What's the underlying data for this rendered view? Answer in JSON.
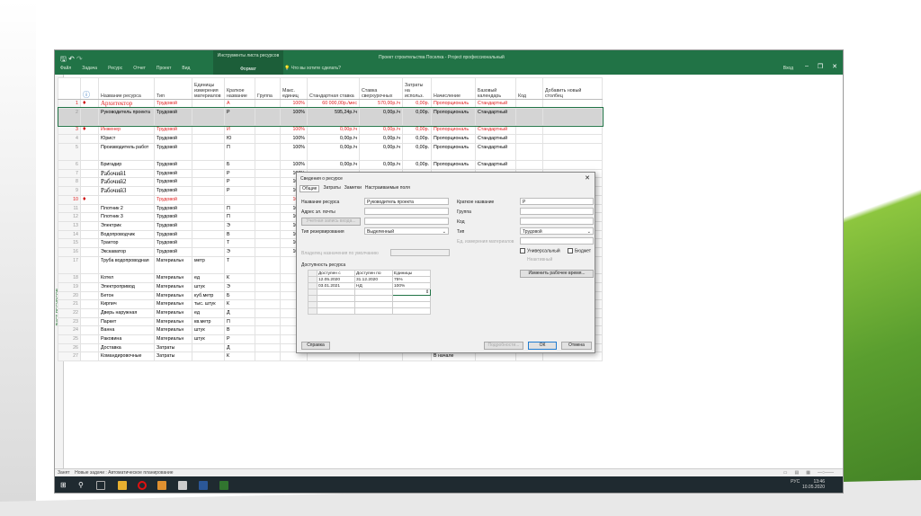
{
  "ribbon": {
    "context_group": "Инструменты листа ресурсов",
    "context_tab": "Формат",
    "title": "Проект строительства Поселка - Project профессиональный",
    "tabs": [
      "Файл",
      "Задача",
      "Ресурс",
      "Отчет",
      "Проект",
      "Вид"
    ],
    "tell_me": "Что вы хотите сделать?",
    "login": "Вход"
  },
  "side_label": "ЛИСТ РЕСУРСОВ",
  "columns": [
    "",
    "Название ресурса",
    "Тип",
    "Единицы измерения материалов",
    "Краткое название",
    "Группа",
    "Макс. единиц",
    "Стандартная ставка",
    "Ставка сверхурочных",
    "Затраты на использ.",
    "Начисление",
    "Базовый календарь",
    "Код",
    "Добавить новый столбец"
  ],
  "rows": [
    {
      "n": "1",
      "ind": true,
      "name": "Архитектор",
      "type": "Трудовой",
      "unit": "",
      "short": "А",
      "max": "100%",
      "std": "60 000,00р./мес",
      "ot": "570,00р./ч",
      "cpu": "0,00р.",
      "acc": "Пропорциональ",
      "cal": "Стандартный",
      "red": true,
      "serif": true
    },
    {
      "n": "2",
      "name": "Руководитель проекта",
      "type": "Трудовой",
      "unit": "",
      "short": "Р",
      "max": "100%",
      "std": "595,24р./ч",
      "ot": "0,00р./ч",
      "cpu": "0,00р.",
      "acc": "Пропорциональ",
      "cal": "Стандартный",
      "sel": true,
      "dbl": true
    },
    {
      "n": "3",
      "ind": true,
      "name": "Инженер",
      "type": "Трудовой",
      "unit": "",
      "short": "И",
      "max": "100%",
      "std": "0,00р./ч",
      "ot": "0,00р./ч",
      "cpu": "0,00р.",
      "acc": "Пропорциональ",
      "cal": "Стандартный",
      "red": true
    },
    {
      "n": "4",
      "name": "Юрист",
      "type": "Трудовой",
      "unit": "",
      "short": "Ю",
      "max": "100%",
      "std": "0,00р./ч",
      "ot": "0,00р./ч",
      "cpu": "0,00р.",
      "acc": "Пропорциональ",
      "cal": "Стандартный"
    },
    {
      "n": "5",
      "name": "Производитель работ",
      "type": "Трудовой",
      "unit": "",
      "short": "П",
      "max": "100%",
      "std": "0,00р./ч",
      "ot": "0,00р./ч",
      "cpu": "0,00р.",
      "acc": "Пропорциональ",
      "cal": "Стандартный",
      "dbl": true
    },
    {
      "n": "6",
      "name": "Бригадир",
      "type": "Трудовой",
      "unit": "",
      "short": "Б",
      "max": "100%",
      "std": "0,00р./ч",
      "ot": "0,00р./ч",
      "cpu": "0,00р.",
      "acc": "Пропорциональ",
      "cal": "Стандартный"
    },
    {
      "n": "7",
      "name": "Рабочий1",
      "type": "Трудовой",
      "unit": "",
      "short": "Р",
      "max": "100%",
      "serif": true
    },
    {
      "n": "8",
      "name": "Рабочий2",
      "type": "Трудовой",
      "unit": "",
      "short": "Р",
      "max": "100%",
      "serif": true
    },
    {
      "n": "9",
      "name": "Рабочий3",
      "type": "Трудовой",
      "unit": "",
      "short": "Р",
      "max": "100%",
      "serif": true
    },
    {
      "n": "10",
      "ind": true,
      "name": "",
      "type": "Трудовой",
      "unit": "",
      "short": "",
      "max": "100%",
      "red": true
    },
    {
      "n": "11",
      "name": "Плотник 2",
      "type": "Трудовой",
      "unit": "",
      "short": "П",
      "max": "100%"
    },
    {
      "n": "12",
      "name": "Плотник 3",
      "type": "Трудовой",
      "unit": "",
      "short": "П",
      "max": "100%"
    },
    {
      "n": "13",
      "name": "Электрик",
      "type": "Трудовой",
      "unit": "",
      "short": "Э",
      "max": "100%"
    },
    {
      "n": "14",
      "name": "Водопроводчик",
      "type": "Трудовой",
      "unit": "",
      "short": "В",
      "max": "100%"
    },
    {
      "n": "15",
      "name": "Трактор",
      "type": "Трудовой",
      "unit": "",
      "short": "Т",
      "max": "100%"
    },
    {
      "n": "16",
      "name": "Экскаватор",
      "type": "Трудовой",
      "unit": "",
      "short": "Э",
      "max": "100%"
    },
    {
      "n": "17",
      "name": "Труба водопроводная",
      "type": "Материальн",
      "unit": "метр",
      "short": "Т",
      "dbl": true
    },
    {
      "n": "18",
      "name": "Котел",
      "type": "Материальн",
      "unit": "ед",
      "short": "К"
    },
    {
      "n": "19",
      "name": "Электропривод",
      "type": "Материальн",
      "unit": "штук",
      "short": "Э"
    },
    {
      "n": "20",
      "name": "Бетон",
      "type": "Материальн",
      "unit": "куб.метр",
      "short": "Б"
    },
    {
      "n": "21",
      "name": "Кирпич",
      "type": "Материальн",
      "unit": "тыс. штук",
      "short": "К"
    },
    {
      "n": "22",
      "name": "Дверь наружная",
      "type": "Материальн",
      "unit": "ед",
      "short": "Д"
    },
    {
      "n": "23",
      "name": "Паркет",
      "type": "Материальн",
      "unit": "кв.метр",
      "short": "П"
    },
    {
      "n": "24",
      "name": "Ванна",
      "type": "Материальн",
      "unit": "штук",
      "short": "В"
    },
    {
      "n": "25",
      "name": "Раковина",
      "type": "Материальн",
      "unit": "штук",
      "short": "Р"
    },
    {
      "n": "26",
      "name": "Доставка",
      "type": "Затраты",
      "unit": "",
      "short": "Д"
    },
    {
      "n": "27",
      "name": "Командировочные",
      "type": "Затраты",
      "unit": "",
      "short": "К",
      "acc": "В начале"
    }
  ],
  "dialog": {
    "title": "Сведения о ресурсе",
    "tabs": [
      "Общие",
      "Затраты",
      "Заметки",
      "Настраиваемые поля"
    ],
    "name_label": "Название ресурса",
    "name_value": "Руководитель проекта",
    "email_label": "Адрес эл. почты",
    "account_btn": "Учетная запись входа...",
    "booking_label": "Тип резервирования",
    "booking_value": "Выделенный",
    "default_owner_label": "Владелец назначения по умолчанию",
    "short_label": "Краткое название",
    "short_value": "Р",
    "group_label": "Группа",
    "code_label": "Код",
    "type_label": "Тип",
    "type_value": "Трудовой",
    "material_label": "Ед. измерения материалов",
    "generic": "Универсальный",
    "budget": "Бюджет",
    "inactive": "Неактивный",
    "change_time_btn": "Изменить рабочее время...",
    "availability_label": "Доступность ресурса",
    "avail_headers": [
      "Доступен с",
      "Доступен по",
      "Единицы"
    ],
    "avail_rows": [
      [
        "12.05.2020",
        "31.12.2020",
        "75%"
      ],
      [
        "03.01.2021",
        "НД",
        "100%"
      ]
    ],
    "help": "Справка",
    "details": "Подробности...",
    "ok": "ОК",
    "cancel": "Отмена"
  },
  "status": {
    "mode": "Занят",
    "new_tasks": "Новые задачи : Автоматическое планирование"
  },
  "tray": {
    "lang": "РУС",
    "time": "13:46",
    "date": "10.05.2020"
  }
}
